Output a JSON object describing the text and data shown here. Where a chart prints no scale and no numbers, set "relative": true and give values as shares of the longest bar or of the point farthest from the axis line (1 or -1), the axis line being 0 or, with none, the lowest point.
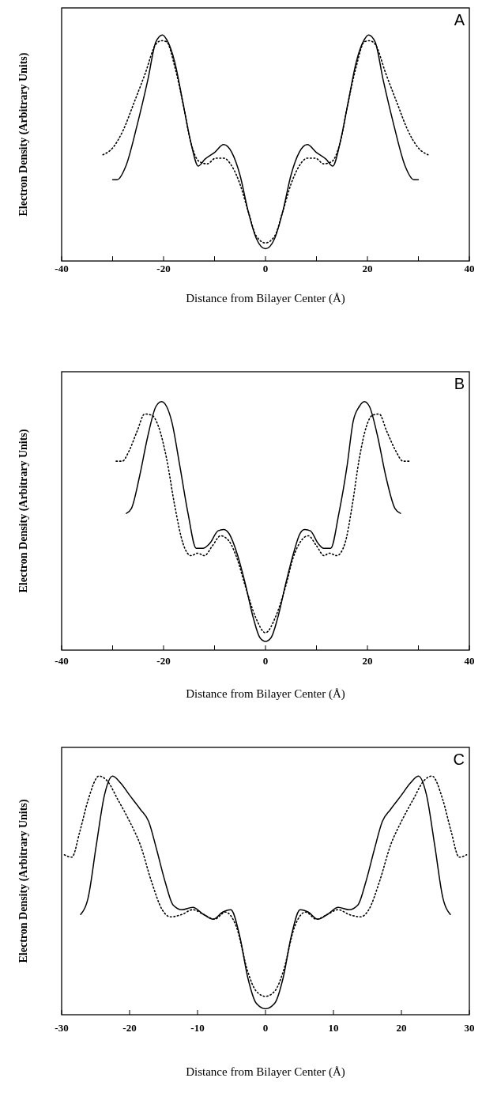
{
  "chart_data": [
    {
      "type": "line",
      "relative": true,
      "xlabel": "Distance from Bilayer Center  (Å)",
      "ylabel": "Electron Density  (Arbitrary Units)",
      "annotations": [
        "A"
      ],
      "xlim": [
        -40,
        40
      ],
      "xticks": [
        -40,
        {
          "value": -30,
          "label": null
        },
        -20,
        {
          "value": -10,
          "label": null
        },
        0,
        {
          "value": 10,
          "label": null
        },
        20,
        {
          "value": 30,
          "label": null
        },
        40
      ],
      "tick_labels": "x",
      "series": [
        {
          "color": "#000000",
          "line_style": "solid",
          "x": [
            -30,
            -29.1,
            -27.4,
            -25.2,
            -23.1,
            -21.5,
            -20.2,
            -19.4,
            -17.8,
            -16.2,
            -14.6,
            -13.2,
            -11.9,
            -10,
            -8.2,
            -6.6,
            -5,
            -3.4,
            -1.8,
            0,
            1.8,
            3.4,
            5,
            6.6,
            8.2,
            10,
            11.9,
            13.2,
            14.6,
            16.2,
            17.8,
            19.4,
            20.2,
            21.5,
            23.1,
            25.2,
            27.4,
            29.1,
            30
          ],
          "values": [
            0.36,
            0.36,
            0.42,
            0.6,
            0.8,
            0.97,
            1,
            0.98,
            0.88,
            0.7,
            0.52,
            0.42,
            0.45,
            0.48,
            0.515,
            0.48,
            0.38,
            0.22,
            0.1,
            0.054,
            0.1,
            0.22,
            0.38,
            0.48,
            0.515,
            0.48,
            0.45,
            0.42,
            0.52,
            0.7,
            0.88,
            0.98,
            1,
            0.97,
            0.8,
            0.6,
            0.42,
            0.36,
            0.36
          ]
        },
        {
          "color": "#000000",
          "line_style": "dotted",
          "x": [
            -31.9,
            -30,
            -27.9,
            -25.8,
            -23.6,
            -21.5,
            -20.4,
            -19.4,
            -17.8,
            -16.2,
            -14.6,
            -13,
            -11.4,
            -9.8,
            -8.2,
            -6.6,
            -5,
            -3.4,
            -1.8,
            0,
            1.8,
            3.4,
            5,
            6.6,
            8.2,
            9.8,
            11.4,
            13,
            14.6,
            16.2,
            17.8,
            19.4,
            20.4,
            21.5,
            23.6,
            25.8,
            27.9,
            30,
            31.9
          ],
          "values": [
            0.47,
            0.5,
            0.58,
            0.7,
            0.83,
            0.96,
            0.975,
            0.97,
            0.86,
            0.7,
            0.52,
            0.44,
            0.43,
            0.455,
            0.455,
            0.42,
            0.34,
            0.22,
            0.11,
            0.08,
            0.11,
            0.22,
            0.34,
            0.42,
            0.455,
            0.455,
            0.43,
            0.44,
            0.52,
            0.7,
            0.86,
            0.97,
            0.975,
            0.96,
            0.83,
            0.7,
            0.58,
            0.5,
            0.47
          ]
        }
      ]
    },
    {
      "type": "line",
      "relative": true,
      "xlabel": "Distance from Bilayer Center  (Å)",
      "ylabel": "Electron Density  (Arbitrary Units)",
      "annotations": [
        "B"
      ],
      "xlim": [
        -40,
        40
      ],
      "xticks": [
        -40,
        {
          "value": -30,
          "label": null
        },
        -20,
        {
          "value": -10,
          "label": null
        },
        0,
        {
          "value": 10,
          "label": null
        },
        20,
        {
          "value": 30,
          "label": null
        },
        40
      ],
      "tick_labels": "x",
      "series": [
        {
          "color": "#000000",
          "line_style": "solid",
          "x": [
            -27.3,
            -26.3,
            -24.7,
            -23.1,
            -21.5,
            -20.4,
            -19.4,
            -18.4,
            -16.8,
            -15.2,
            -13.6,
            -12.2,
            -10.9,
            -9.3,
            -8.2,
            -7.2,
            -5.6,
            -4,
            -2.4,
            -1.1,
            0,
            1.1,
            2.4,
            4,
            5.5,
            6.8,
            7.7,
            8.8,
            10.3,
            11.4,
            12.8,
            14.4,
            16,
            17.2,
            18.4,
            19.4,
            20.4,
            22,
            23.6,
            25.4,
            26.5
          ],
          "values": [
            0.55,
            0.57,
            0.7,
            0.86,
            0.98,
            1,
            0.98,
            0.92,
            0.74,
            0.55,
            0.41,
            0.41,
            0.43,
            0.48,
            0.485,
            0.47,
            0.39,
            0.27,
            0.13,
            0.05,
            0.035,
            0.05,
            0.13,
            0.27,
            0.39,
            0.47,
            0.485,
            0.48,
            0.43,
            0.41,
            0.41,
            0.55,
            0.74,
            0.92,
            0.98,
            1,
            0.98,
            0.86,
            0.7,
            0.57,
            0.55
          ]
        },
        {
          "color": "#000000",
          "line_style": "dotted",
          "x": [
            -29.3,
            -28.1,
            -26.8,
            -25.2,
            -23.7,
            -22.3,
            -21,
            -19.4,
            -17.8,
            -16.2,
            -14.6,
            -13.3,
            -12,
            -10.4,
            -8.8,
            -7.2,
            -5.6,
            -4,
            -1.9,
            0,
            1.9,
            4,
            5.4,
            7,
            8.4,
            10,
            11.5,
            12.5,
            14,
            15.6,
            17,
            18.4,
            19.8,
            21,
            22.3,
            23.8,
            25.6,
            27,
            28.5
          ],
          "values": [
            0.76,
            0.76,
            0.8,
            0.88,
            0.95,
            0.945,
            0.9,
            0.77,
            0.58,
            0.43,
            0.38,
            0.39,
            0.38,
            0.42,
            0.46,
            0.44,
            0.37,
            0.26,
            0.13,
            0.07,
            0.13,
            0.26,
            0.37,
            0.44,
            0.46,
            0.42,
            0.38,
            0.39,
            0.38,
            0.43,
            0.58,
            0.77,
            0.9,
            0.945,
            0.95,
            0.88,
            0.8,
            0.76,
            0.76
          ]
        }
      ]
    },
    {
      "type": "line",
      "relative": true,
      "xlabel": "Distance from Bilayer Center  (Å)",
      "ylabel": "Electron Density  (Arbitrary Units)",
      "annotations": [
        "C"
      ],
      "xlim": [
        -30,
        30
      ],
      "xticks": [
        -30,
        -20,
        -10,
        0,
        10,
        20,
        30
      ],
      "tick_labels": "x",
      "series": [
        {
          "color": "#000000",
          "line_style": "solid",
          "x": [
            -27.2,
            -26.1,
            -24.9,
            -23.7,
            -22.5,
            -21.3,
            -20,
            -18.4,
            -17.2,
            -16,
            -14.8,
            -13.6,
            -12.3,
            -10.7,
            -9.1,
            -7.7,
            -6.3,
            -5.1,
            -3.8,
            -2.6,
            -1.4,
            0,
            1.4,
            2.6,
            3.8,
            5.1,
            6.3,
            7.7,
            9.1,
            10.7,
            12.3,
            13.6,
            14.8,
            16,
            17.2,
            18.4,
            20,
            21.3,
            22.5,
            23.7,
            24.9,
            26.1,
            27.2
          ],
          "values": [
            0.42,
            0.49,
            0.71,
            0.92,
            1,
            0.97,
            0.92,
            0.86,
            0.81,
            0.69,
            0.56,
            0.46,
            0.44,
            0.45,
            0.42,
            0.4,
            0.43,
            0.44,
            0.33,
            0.155,
            0.05,
            0.025,
            0.05,
            0.155,
            0.33,
            0.44,
            0.43,
            0.4,
            0.42,
            0.45,
            0.44,
            0.46,
            0.56,
            0.69,
            0.81,
            0.86,
            0.92,
            0.97,
            1,
            0.92,
            0.71,
            0.49,
            0.42
          ]
        },
        {
          "color": "#000000",
          "line_style": "dotted",
          "x": [
            -29.6,
            -28.5,
            -27.3,
            -26.1,
            -24.5,
            -23.3,
            -21.7,
            -20,
            -18.4,
            -16.8,
            -15.2,
            -14,
            -12.3,
            -10.7,
            -9.1,
            -7.5,
            -5.9,
            -4.3,
            -2.6,
            -1.4,
            0,
            1.4,
            2.6,
            4.3,
            5.9,
            7.5,
            9.1,
            10.7,
            12.3,
            14,
            15.2,
            16.8,
            18.4,
            20,
            21.7,
            23.3,
            24.5,
            26.1,
            27.3,
            28.5,
            29.6
          ],
          "values": [
            0.67,
            0.66,
            0.77,
            0.9,
            1,
            0.98,
            0.9,
            0.81,
            0.71,
            0.56,
            0.44,
            0.41,
            0.42,
            0.44,
            0.42,
            0.4,
            0.43,
            0.37,
            0.18,
            0.1,
            0.077,
            0.1,
            0.18,
            0.37,
            0.43,
            0.4,
            0.42,
            0.44,
            0.42,
            0.41,
            0.44,
            0.56,
            0.71,
            0.81,
            0.9,
            0.98,
            1,
            0.9,
            0.77,
            0.66,
            0.67
          ]
        }
      ]
    }
  ]
}
